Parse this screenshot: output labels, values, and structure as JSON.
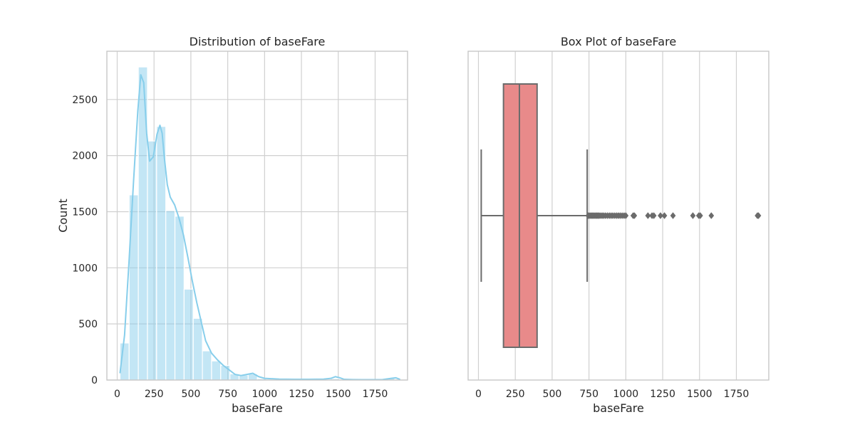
{
  "chart_data": [
    {
      "type": "histogram",
      "title": "Distribution of baseFare",
      "xlabel": "baseFare",
      "ylabel": "Count",
      "xlim": [
        -70,
        1970
      ],
      "ylim": [
        0,
        2930
      ],
      "xticks": [
        0,
        250,
        500,
        750,
        1000,
        1250,
        1500,
        1750
      ],
      "yticks": [
        0,
        500,
        1000,
        1500,
        2000,
        2500
      ],
      "grid": true,
      "bar_color": "#87CEEB",
      "bins": {
        "edges": [
          19,
          81.1,
          143.3,
          205.4,
          267.5,
          329.7,
          391.8,
          453.9,
          516.1,
          578.2,
          640.3,
          702.4,
          764.6,
          826.7,
          888.8,
          951.0,
          1013.1,
          1075.2,
          1137.4,
          1199.5,
          1261.6,
          1323.8,
          1385.9,
          1448.0,
          1510.2,
          1572.3,
          1634.4,
          1696.5,
          1758.7,
          1820.8,
          1882.9
        ],
        "counts": [
          330,
          1650,
          2790,
          2130,
          2260,
          1510,
          1460,
          810,
          550,
          260,
          170,
          130,
          55,
          45,
          55,
          12,
          8,
          6,
          5,
          5,
          5,
          3,
          3,
          12,
          3,
          2,
          2,
          2,
          2,
          18
        ]
      },
      "kde": {
        "x": [
          19,
          50,
          80,
          110,
          140,
          160,
          180,
          200,
          220,
          245,
          270,
          290,
          305,
          320,
          340,
          360,
          390,
          420,
          450,
          480,
          510,
          540,
          570,
          600,
          640,
          680,
          720,
          760,
          800,
          840,
          880,
          920,
          960,
          1000,
          1100,
          1200,
          1300,
          1400,
          1450,
          1480,
          1510,
          1540,
          1600,
          1700,
          1800,
          1860,
          1890,
          1920
        ],
        "y": [
          60,
          400,
          1050,
          1750,
          2400,
          2720,
          2650,
          2200,
          1950,
          1990,
          2190,
          2270,
          2200,
          1980,
          1740,
          1630,
          1560,
          1440,
          1290,
          1090,
          880,
          690,
          520,
          350,
          240,
          180,
          130,
          90,
          50,
          40,
          50,
          60,
          30,
          15,
          8,
          6,
          6,
          8,
          15,
          30,
          20,
          6,
          4,
          3,
          4,
          15,
          20,
          5
        ]
      }
    },
    {
      "type": "box",
      "title": "Box Plot of baseFare",
      "xlabel": "baseFare",
      "xlim": [
        -70,
        1970
      ],
      "xticks": [
        0,
        250,
        500,
        750,
        1000,
        1250,
        1500,
        1750
      ],
      "grid": true,
      "box_color": "#E88A8A",
      "line_color": "#6b6b6b",
      "stats": {
        "whisker_low": 19,
        "q1": 170,
        "median": 278,
        "q3": 398,
        "whisker_high": 738
      },
      "outliers": [
        745,
        752,
        760,
        768,
        775,
        782,
        790,
        798,
        805,
        812,
        820,
        830,
        840,
        850,
        862,
        875,
        888,
        900,
        912,
        925,
        938,
        950,
        962,
        975,
        988,
        1000,
        1050,
        1058,
        1150,
        1178,
        1190,
        1235,
        1262,
        1320,
        1455,
        1495,
        1505,
        1580,
        1893,
        1900
      ]
    }
  ]
}
